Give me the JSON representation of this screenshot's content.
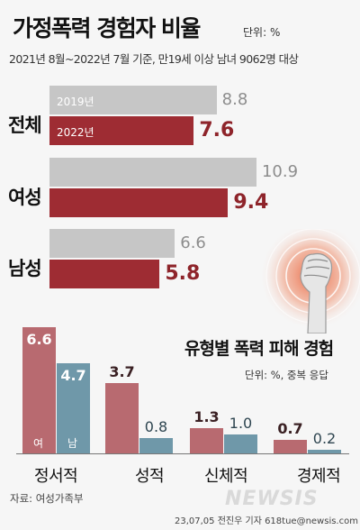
{
  "header": {
    "title": "가정폭력 경험자 비율",
    "unit": "단위: %",
    "subtitle": "2021년 8월~2022년 7월 기준, 만19세 이상 남녀 9062명 대상"
  },
  "colors": {
    "series_2019": "#c6c6c6",
    "series_2022": "#9e2c33",
    "female": "#b86a70",
    "male": "#6f98a9"
  },
  "fist_icon": "raised-fist-icon",
  "chart_data": [
    {
      "type": "bar",
      "orientation": "horizontal",
      "categories": [
        "전체",
        "여성",
        "남성"
      ],
      "series": [
        {
          "name": "2019년",
          "values": [
            8.8,
            10.9,
            6.6
          ]
        },
        {
          "name": "2022년",
          "values": [
            7.6,
            9.4,
            5.8
          ]
        }
      ],
      "value_labels": {
        "2019": [
          "8.8",
          "10.9",
          "6.6"
        ],
        "2022": [
          "7.6",
          "9.4",
          "5.8"
        ]
      },
      "title": "가정폭력 경험자 비율",
      "unit": "단위: %",
      "legend": "inside-bars"
    },
    {
      "type": "bar",
      "categories": [
        "정서적",
        "성적",
        "신체적",
        "경제적"
      ],
      "series": [
        {
          "name": "여",
          "values": [
            6.6,
            3.7,
            1.3,
            0.7
          ]
        },
        {
          "name": "남",
          "values": [
            4.7,
            0.8,
            1.0,
            0.2
          ]
        }
      ],
      "value_labels": {
        "female": [
          "6.6",
          "3.7",
          "1.3",
          "0.7"
        ],
        "male": [
          "4.7",
          "0.8",
          "1.0",
          "0.2"
        ]
      },
      "title": "유형별 폭력 피해 경험",
      "unit": "단위: %, 중복 응답",
      "legend": "inside-first-bars"
    }
  ],
  "footer": {
    "source": "자료: 여성가족부",
    "credit": "23,07,05 전진우 기자 618tue@newsis.com",
    "brand": "NEWSIS"
  }
}
